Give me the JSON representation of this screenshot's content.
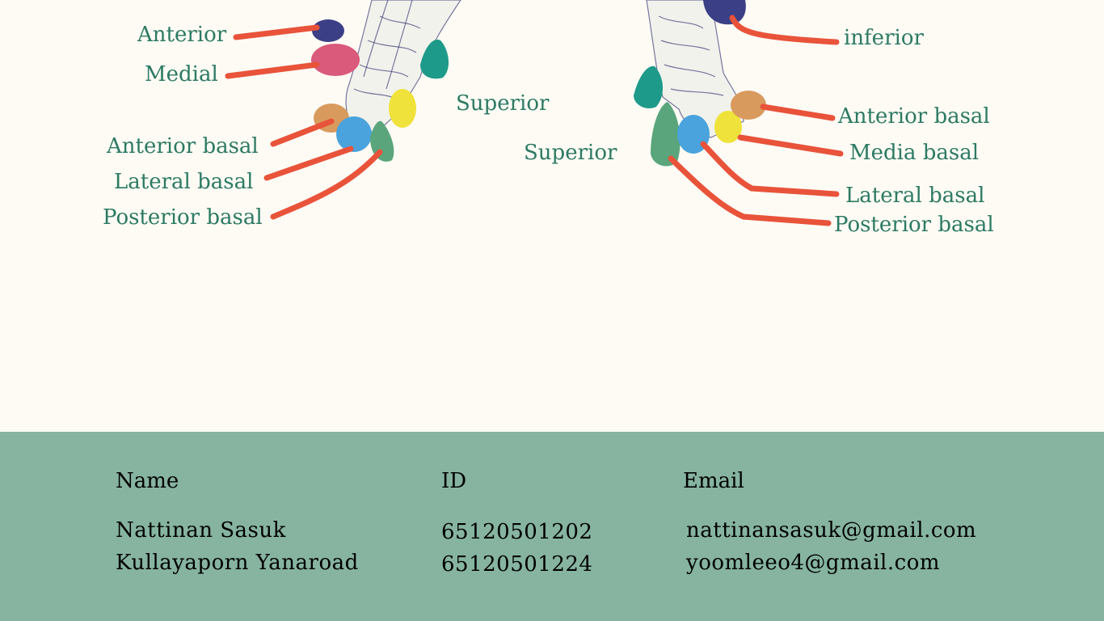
{
  "diagram": {
    "left_labels": {
      "anterior": "Anterior",
      "medial": "Medial",
      "superior": "Superior",
      "anterior_basal": "Anterior basal",
      "lateral_basal": "Lateral basal",
      "posterior_basal": "Posterior basal"
    },
    "right_labels": {
      "inferior": "inferior",
      "superior": "Superior",
      "anterior_basal": "Anterior basal",
      "media_basal": "Media basal",
      "lateral_basal": "Lateral basal",
      "posterior_basal": "Posterior basal"
    },
    "colors": {
      "leader": "#e8533a",
      "label_text": "#2c7a63",
      "bronchus_outline": "#3f3f78",
      "navy_segment": "#3b3f86",
      "pink_segment": "#d95a7b",
      "teal_segment": "#1e9a8a",
      "orange_segment": "#d99a5e",
      "blue_segment": "#4aa3dc",
      "green_segment": "#5aa57b",
      "yellow_segment": "#efe23a"
    }
  },
  "footer": {
    "background": "#86b4a1",
    "name_header": "Name",
    "id_header": "ID",
    "email_header": "Email",
    "people": [
      {
        "name": "Nattinan Sasuk",
        "id": "65120501202",
        "email": "nattinansasuk@gmail.com"
      },
      {
        "name": "Kullayaporn Yanaroad",
        "id": "65120501224",
        "email": "yoomleeo4@gmail.com"
      }
    ]
  }
}
